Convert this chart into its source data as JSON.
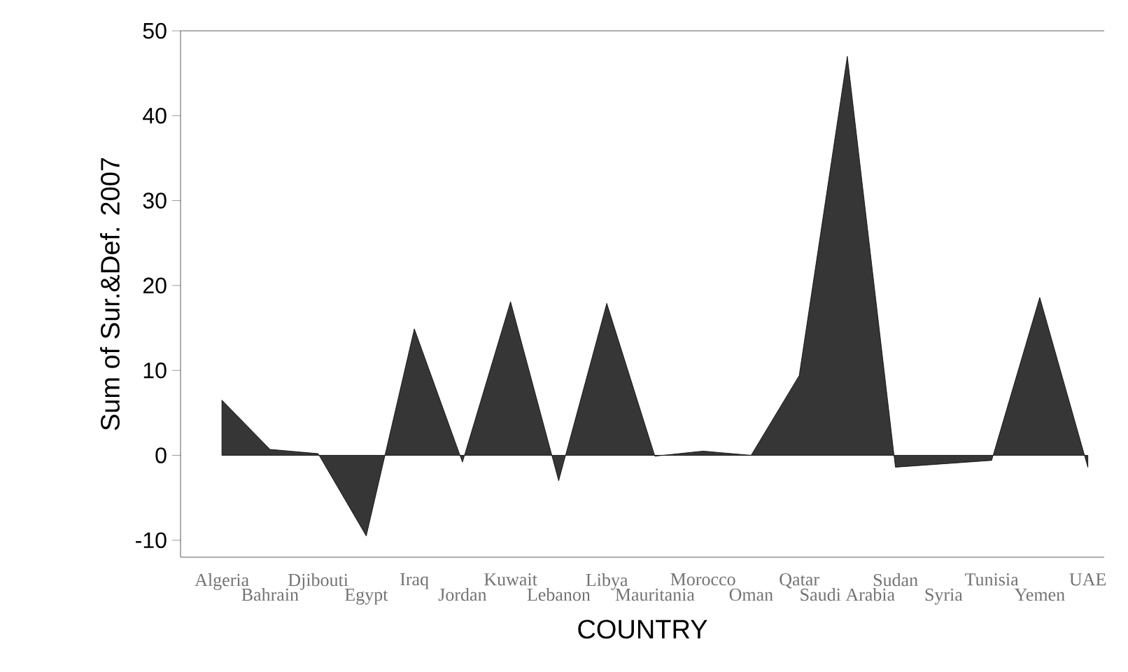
{
  "chart_data": {
    "type": "area",
    "xlabel": "COUNTRY",
    "ylabel": "Sum of Sur.&Def. 2007",
    "categories": [
      "Algeria",
      "Bahrain",
      "Djibouti",
      "Egypt",
      "Iraq",
      "Jordan",
      "Kuwait",
      "Lebanon",
      "Libya",
      "Mauritania",
      "Morocco",
      "Oman",
      "Qatar",
      "Saudi Arabia",
      "Sudan",
      "Syria",
      "Tunisia",
      "Yemen",
      "UAE"
    ],
    "values": [
      6.5,
      0.7,
      0.2,
      -9.5,
      14.9,
      -0.8,
      18.1,
      -3.0,
      17.9,
      -0.1,
      0.5,
      0.0,
      9.4,
      47.0,
      -1.4,
      -1.0,
      -0.6,
      18.6,
      -1.4
    ],
    "color": "#363636",
    "ylim": [
      -12,
      50
    ],
    "yticks": [
      -10,
      0,
      10,
      20,
      30,
      40,
      50
    ],
    "grid": false
  }
}
